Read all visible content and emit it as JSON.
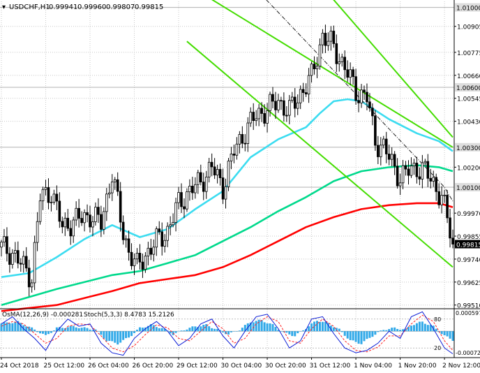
{
  "chart_data": [
    {
      "type": "candlestick",
      "symbol_timeframe": "USDCHF,H1",
      "ohlc_header": [
        "0.99941",
        "0.99960",
        "0.99807",
        "0.99815"
      ],
      "ylim": [
        0.99495,
        1.0103
      ],
      "y_ticks": [
        "1.00905",
        "1.00775",
        "1.00660",
        "1.00545",
        "1.00430",
        "1.00200",
        "0.99970",
        "0.99855",
        "0.99740",
        "0.99625",
        "0.99510"
      ],
      "y_tick_values": [
        1.00905,
        1.00775,
        1.0066,
        1.00545,
        1.0043,
        1.002,
        0.9997,
        0.99855,
        0.9974,
        0.99625,
        0.9951
      ],
      "levels": [
        {
          "label": "1.01000",
          "value": 1.01
        },
        {
          "label": "1.00600",
          "value": 1.006
        },
        {
          "label": "1.00300",
          "value": 1.003
        },
        {
          "label": "1.00100",
          "value": 1.001
        }
      ],
      "current_price": {
        "label": "0.99815",
        "value": 0.99815
      },
      "x_labels": [
        "24 Oct 2018",
        "25 Oct 12:00",
        "26 Oct 04:00",
        "26 Oct 20:00",
        "29 Oct 12:00",
        "30 Oct 04:00",
        "30 Oct 20:00",
        "31 Oct 12:00",
        "1 Nov 04:00",
        "1 Nov 20:00",
        "2 Nov 12:00"
      ],
      "x_label_bars": [
        0,
        16,
        32,
        48,
        64,
        80,
        96,
        112,
        128,
        144,
        160
      ],
      "bar_count": 164,
      "price_path": [
        [
          0,
          0.998
        ],
        [
          4,
          0.9977
        ],
        [
          8,
          0.997
        ],
        [
          11,
          0.9965
        ],
        [
          14,
          1.0005
        ],
        [
          18,
          1.0008
        ],
        [
          22,
          0.999
        ],
        [
          26,
          0.9993
        ],
        [
          32,
          0.9996
        ],
        [
          36,
          0.9992
        ],
        [
          40,
          1.0017
        ],
        [
          44,
          0.9987
        ],
        [
          46,
          0.9978
        ],
        [
          49,
          0.997
        ],
        [
          52,
          0.9976
        ],
        [
          56,
          0.9983
        ],
        [
          60,
          0.9988
        ],
        [
          64,
          1.0002
        ],
        [
          68,
          1.0008
        ],
        [
          72,
          1.0013
        ],
        [
          76,
          1.002
        ],
        [
          80,
          1.001
        ],
        [
          84,
          1.0028
        ],
        [
          88,
          1.0038
        ],
        [
          92,
          1.0046
        ],
        [
          96,
          1.0049
        ],
        [
          100,
          1.0053
        ],
        [
          104,
          1.0048
        ],
        [
          108,
          1.0057
        ],
        [
          112,
          1.0065
        ],
        [
          116,
          1.0086
        ],
        [
          120,
          1.008
        ],
        [
          124,
          1.007
        ],
        [
          128,
          1.0058
        ],
        [
          132,
          1.0055
        ],
        [
          135,
          1.0033
        ],
        [
          138,
          1.003
        ],
        [
          141,
          1.0022
        ],
        [
          144,
          1.0015
        ],
        [
          147,
          1.0018
        ],
        [
          150,
          1.002
        ],
        [
          153,
          1.0018
        ],
        [
          156,
          1.0012
        ],
        [
          159,
          1.0005
        ],
        [
          161,
          0.9994
        ],
        [
          163,
          0.99815
        ]
      ],
      "moving_averages": [
        {
          "color": "#ff0000",
          "points": [
            [
              0,
              0.9948
            ],
            [
              20,
              0.9951
            ],
            [
              40,
              0.9958
            ],
            [
              50,
              0.9962
            ],
            [
              60,
              0.9964
            ],
            [
              70,
              0.9966
            ],
            [
              80,
              0.997
            ],
            [
              90,
              0.9976
            ],
            [
              100,
              0.9983
            ],
            [
              110,
              0.999
            ],
            [
              120,
              0.9995
            ],
            [
              130,
              0.9999
            ],
            [
              140,
              1.0001
            ],
            [
              150,
              1.0002
            ],
            [
              158,
              1.0002
            ],
            [
              163,
              1.0
            ]
          ]
        },
        {
          "color": "#00d98c",
          "points": [
            [
              0,
              0.9951
            ],
            [
              20,
              0.9959
            ],
            [
              40,
              0.9966
            ],
            [
              50,
              0.9968
            ],
            [
              60,
              0.9972
            ],
            [
              70,
              0.9976
            ],
            [
              80,
              0.9983
            ],
            [
              90,
              0.999
            ],
            [
              100,
              0.9998
            ],
            [
              110,
              1.0005
            ],
            [
              120,
              1.0013
            ],
            [
              130,
              1.0018
            ],
            [
              140,
              1.002
            ],
            [
              150,
              1.0021
            ],
            [
              158,
              1.002
            ],
            [
              163,
              1.0018
            ]
          ]
        },
        {
          "color": "#3cdcf0",
          "points": [
            [
              0,
              0.9965
            ],
            [
              10,
              0.9967
            ],
            [
              20,
              0.9975
            ],
            [
              30,
              0.9984
            ],
            [
              40,
              0.9991
            ],
            [
              45,
              0.9988
            ],
            [
              50,
              0.9985
            ],
            [
              60,
              0.9989
            ],
            [
              70,
              0.9999
            ],
            [
              80,
              1.0008
            ],
            [
              90,
              1.0025
            ],
            [
              100,
              1.0034
            ],
            [
              110,
              1.004
            ],
            [
              115,
              1.0047
            ],
            [
              120,
              1.0053
            ],
            [
              125,
              1.0054
            ],
            [
              130,
              1.0053
            ],
            [
              140,
              1.0044
            ],
            [
              150,
              1.0037
            ],
            [
              158,
              1.0033
            ],
            [
              163,
              1.0028
            ]
          ]
        }
      ],
      "channel_lines": [
        {
          "color": "#44dd00",
          "points": [
            [
              63,
              1.0115
            ],
            [
              163,
              1.003
            ]
          ]
        },
        {
          "color": "#44dd00",
          "points": [
            [
              67,
              1.0083
            ],
            [
              163,
              0.997
            ]
          ]
        },
        {
          "color": "#44dd00",
          "points": [
            [
              113,
              1.0115
            ],
            [
              163,
              1.0035
            ]
          ]
        },
        {
          "color": "#202020",
          "points": [
            [
              88,
              1.0115
            ],
            [
              160,
              1.001
            ],
            [
              163,
              1.0003
            ]
          ]
        }
      ]
    },
    {
      "type": "bar",
      "title": "OsMA(12,26,9) -0.000281",
      "stoch_label": "Stoch(5,3,3) 8.4783 15.2126",
      "y_ticks": [
        "0.000597",
        "-0.000723"
      ],
      "stoch_levels": [
        "80",
        "20"
      ],
      "histogram_path": [
        [
          0,
          0.00025
        ],
        [
          6,
          0.0003
        ],
        [
          12,
          5e-05
        ],
        [
          16,
          -0.00015
        ],
        [
          20,
          0.0001
        ],
        [
          26,
          0.00015
        ],
        [
          30,
          0.0001
        ],
        [
          34,
          5e-05
        ],
        [
          38,
          -0.0003
        ],
        [
          42,
          -0.0004
        ],
        [
          46,
          -0.0002
        ],
        [
          50,
          0.0001
        ],
        [
          54,
          0.0002
        ],
        [
          58,
          0.0001
        ],
        [
          62,
          -0.0001
        ],
        [
          66,
          5e-05
        ],
        [
          70,
          0.00015
        ],
        [
          74,
          0.0002
        ],
        [
          78,
          5e-05
        ],
        [
          82,
          -0.0001
        ],
        [
          86,
          5e-05
        ],
        [
          90,
          0.0003
        ],
        [
          94,
          0.00035
        ],
        [
          98,
          0.0002
        ],
        [
          102,
          -5e-05
        ],
        [
          106,
          -0.00015
        ],
        [
          110,
          0.0001
        ],
        [
          114,
          0.00035
        ],
        [
          118,
          0.00025
        ],
        [
          122,
          5e-05
        ],
        [
          126,
          -0.0003
        ],
        [
          130,
          -0.0004
        ],
        [
          134,
          -0.00015
        ],
        [
          138,
          5e-05
        ],
        [
          142,
          0.0001
        ],
        [
          146,
          5e-05
        ],
        [
          148,
          0.0002
        ],
        [
          152,
          0.0003
        ],
        [
          156,
          0.00015
        ],
        [
          160,
          -0.00015
        ],
        [
          163,
          -0.00028
        ]
      ],
      "stoch_main": {
        "color": "#0b1cd6",
        "points": [
          [
            0,
            70
          ],
          [
            4,
            85
          ],
          [
            8,
            60
          ],
          [
            12,
            40
          ],
          [
            16,
            15
          ],
          [
            20,
            55
          ],
          [
            24,
            80
          ],
          [
            28,
            65
          ],
          [
            32,
            70
          ],
          [
            36,
            30
          ],
          [
            40,
            10
          ],
          [
            44,
            5
          ],
          [
            48,
            40
          ],
          [
            52,
            60
          ],
          [
            56,
            75
          ],
          [
            60,
            55
          ],
          [
            64,
            25
          ],
          [
            68,
            40
          ],
          [
            72,
            70
          ],
          [
            76,
            80
          ],
          [
            80,
            45
          ],
          [
            84,
            20
          ],
          [
            88,
            55
          ],
          [
            92,
            85
          ],
          [
            96,
            90
          ],
          [
            100,
            60
          ],
          [
            104,
            20
          ],
          [
            108,
            35
          ],
          [
            112,
            80
          ],
          [
            116,
            85
          ],
          [
            120,
            50
          ],
          [
            124,
            20
          ],
          [
            128,
            10
          ],
          [
            132,
            15
          ],
          [
            136,
            30
          ],
          [
            140,
            55
          ],
          [
            144,
            40
          ],
          [
            148,
            85
          ],
          [
            152,
            95
          ],
          [
            156,
            60
          ],
          [
            160,
            20
          ],
          [
            163,
            8
          ]
        ]
      },
      "stoch_signal": {
        "color": "#ff2020",
        "points": [
          [
            0,
            65
          ],
          [
            4,
            75
          ],
          [
            8,
            70
          ],
          [
            12,
            50
          ],
          [
            16,
            30
          ],
          [
            20,
            40
          ],
          [
            24,
            65
          ],
          [
            28,
            70
          ],
          [
            32,
            68
          ],
          [
            36,
            45
          ],
          [
            40,
            20
          ],
          [
            44,
            12
          ],
          [
            48,
            25
          ],
          [
            52,
            48
          ],
          [
            56,
            68
          ],
          [
            60,
            62
          ],
          [
            64,
            40
          ],
          [
            68,
            35
          ],
          [
            72,
            55
          ],
          [
            76,
            75
          ],
          [
            80,
            60
          ],
          [
            84,
            30
          ],
          [
            88,
            40
          ],
          [
            92,
            70
          ],
          [
            96,
            85
          ],
          [
            100,
            75
          ],
          [
            104,
            35
          ],
          [
            108,
            30
          ],
          [
            112,
            60
          ],
          [
            116,
            80
          ],
          [
            120,
            65
          ],
          [
            124,
            35
          ],
          [
            128,
            15
          ],
          [
            132,
            12
          ],
          [
            136,
            22
          ],
          [
            140,
            45
          ],
          [
            144,
            45
          ],
          [
            148,
            70
          ],
          [
            152,
            88
          ],
          [
            156,
            75
          ],
          [
            160,
            35
          ],
          [
            163,
            15
          ]
        ]
      }
    }
  ],
  "colors": {
    "background": "#ffffff",
    "grid": "#c8c8c8",
    "axis_text": "#000000",
    "price_label_bg": "#dddddd",
    "current_price_bg": "#000000",
    "current_price_text": "#ffffff",
    "candle": "#000000",
    "histogram": "#31a9e8",
    "level_line": "#b0b0b0"
  }
}
